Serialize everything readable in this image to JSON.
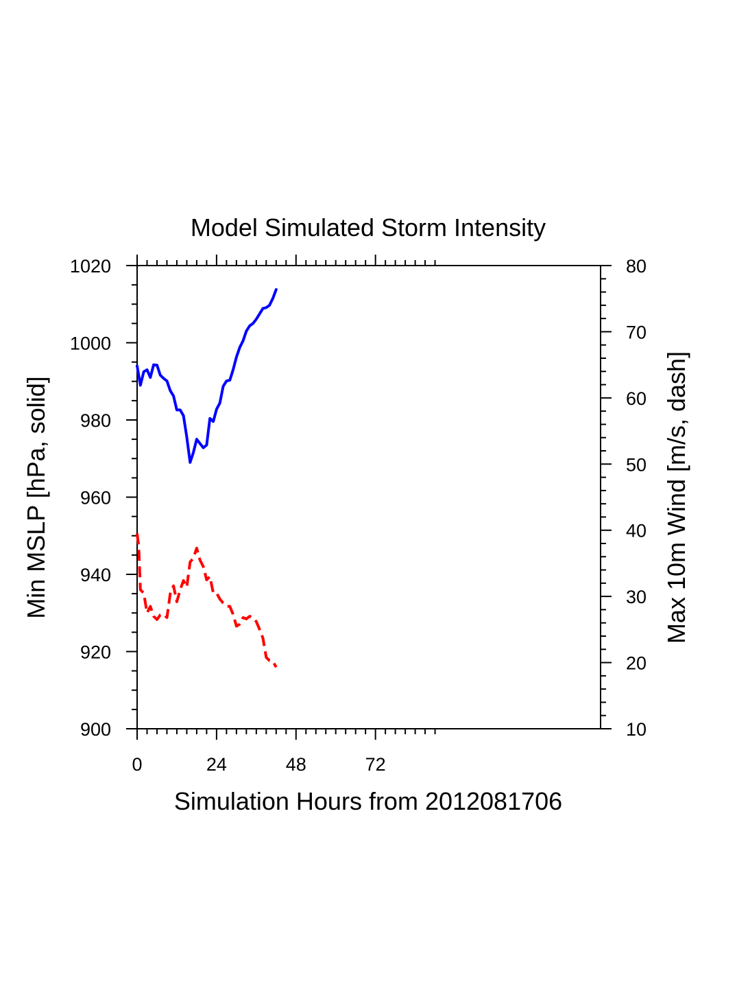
{
  "chart_data": {
    "type": "line",
    "title": "Model Simulated Storm Intensity",
    "xlabel": "Simulation Hours from 2012081706",
    "ylabel_left": "Min MSLP  [hPa, solid]",
    "ylabel_right": "Max 10m Wind  [m/s, dash]",
    "xlim": [
      0,
      140
    ],
    "ylim_left": [
      900,
      1020
    ],
    "ylim_right": [
      10,
      80
    ],
    "x_ticks": [
      0,
      24,
      48,
      72
    ],
    "x_tick_labels": [
      "0",
      "24",
      "48",
      "72"
    ],
    "x_minor_max": 90,
    "y_left_ticks": [
      900,
      920,
      940,
      960,
      980,
      1000,
      1020
    ],
    "y_left_tick_labels": [
      "900",
      "920",
      "940",
      "960",
      "980",
      "1000",
      "1020"
    ],
    "y_right_ticks": [
      10,
      20,
      30,
      40,
      50,
      60,
      70,
      80
    ],
    "y_right_tick_labels": [
      "10",
      "20",
      "30",
      "40",
      "50",
      "60",
      "70",
      "80"
    ],
    "series": [
      {
        "name": "Min MSLP",
        "axis": "left",
        "style": "solid",
        "color": "#0000ff",
        "points": [
          [
            0,
            994
          ],
          [
            1,
            989
          ],
          [
            2,
            992.5
          ],
          [
            3,
            993
          ],
          [
            4,
            991
          ],
          [
            5,
            994.3
          ],
          [
            6,
            994.2
          ],
          [
            7,
            991.6
          ],
          [
            8,
            990.8
          ],
          [
            9,
            990.1
          ],
          [
            10,
            987.6
          ],
          [
            11,
            986.2
          ],
          [
            12,
            982.6
          ],
          [
            13,
            982.6
          ],
          [
            14,
            981.1
          ],
          [
            15,
            975.6
          ],
          [
            16,
            969
          ],
          [
            17,
            971.6
          ],
          [
            18,
            975
          ],
          [
            19,
            973.9
          ],
          [
            20,
            972.8
          ],
          [
            21,
            973.5
          ],
          [
            22,
            980.4
          ],
          [
            23,
            979.6
          ],
          [
            24,
            982.8
          ],
          [
            25,
            984.4
          ],
          [
            26,
            988.7
          ],
          [
            27,
            990.1
          ],
          [
            28,
            990.3
          ],
          [
            29,
            993
          ],
          [
            30,
            996.3
          ],
          [
            31,
            998.8
          ],
          [
            32,
            1000.5
          ],
          [
            33,
            1003
          ],
          [
            34,
            1004.4
          ],
          [
            35,
            1005
          ],
          [
            36,
            1006.1
          ],
          [
            37,
            1007.5
          ],
          [
            38,
            1008.9
          ],
          [
            39,
            1009.1
          ],
          [
            40,
            1009.7
          ],
          [
            41,
            1011.5
          ],
          [
            42,
            1013.8
          ]
        ]
      },
      {
        "name": "Max 10m Wind",
        "axis": "right",
        "style": "dash",
        "color": "#ff0000",
        "points": [
          [
            0,
            39.5
          ],
          [
            0.5,
            37.5
          ],
          [
            1,
            31
          ],
          [
            2,
            30.5
          ],
          [
            3,
            27.5
          ],
          [
            4,
            28.5
          ],
          [
            5,
            27
          ],
          [
            6,
            26.5
          ],
          [
            7,
            27.2
          ],
          [
            8,
            27.3
          ],
          [
            9,
            26.8
          ],
          [
            10,
            30.4
          ],
          [
            11,
            31.6
          ],
          [
            12,
            29.2
          ],
          [
            13,
            31
          ],
          [
            14,
            32.4
          ],
          [
            15,
            31.4
          ],
          [
            16,
            35.2
          ],
          [
            17,
            35.8
          ],
          [
            18,
            37.3
          ],
          [
            19,
            35.5
          ],
          [
            20,
            34.5
          ],
          [
            21,
            32.5
          ],
          [
            22,
            33
          ],
          [
            23,
            30.5
          ],
          [
            24,
            30.5
          ],
          [
            25,
            29.6
          ],
          [
            26,
            29
          ],
          [
            27,
            28.5
          ],
          [
            28,
            28.5
          ],
          [
            29,
            27.3
          ],
          [
            30,
            25.5
          ],
          [
            31,
            25.8
          ],
          [
            32,
            26.8
          ],
          [
            33,
            26.6
          ],
          [
            34,
            27
          ],
          [
            35,
            26.8
          ],
          [
            36,
            26.2
          ],
          [
            37,
            25
          ],
          [
            38,
            23.7
          ],
          [
            39,
            20.8
          ],
          [
            40,
            20.3
          ],
          [
            41,
            20.2
          ],
          [
            42,
            19.3
          ]
        ]
      }
    ]
  }
}
